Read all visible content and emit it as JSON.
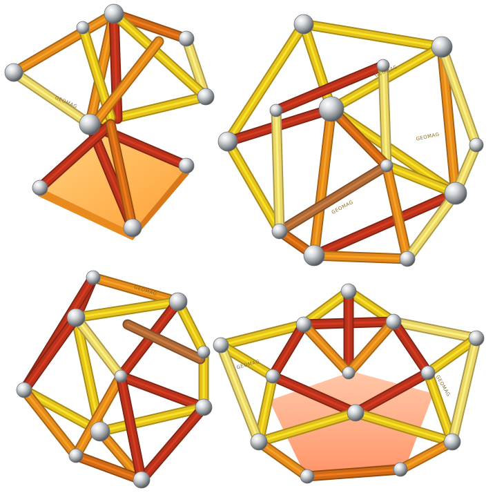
{
  "scene": "Four magnetic construction models built from colored rods and steel balls on a white background",
  "rod_label_text": "GEOMAG",
  "colors": {
    "background": "#ffffff",
    "yellow": "#e6c21e",
    "light_yellow": "#ecd66a",
    "orange": "#e58a1c",
    "dark_orange": "#d06a16",
    "red": "#b8321c",
    "brown": "#b06a36",
    "ball": "#c8ccd0",
    "base_panel": "#ffb040"
  },
  "models": [
    {
      "name": "top-left",
      "description": "Tall wireframe on a square orange base panel"
    },
    {
      "name": "top-right",
      "description": "Large icosahedron-like structure"
    },
    {
      "name": "bottom-left",
      "description": "Cube-like lattice of rods"
    },
    {
      "name": "bottom-right",
      "description": "Pentagonal dome on a translucent orange pentagon base"
    }
  ]
}
